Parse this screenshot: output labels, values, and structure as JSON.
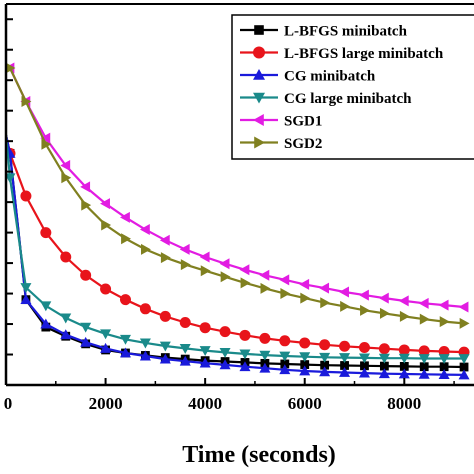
{
  "chart_data": {
    "type": "line",
    "title": "",
    "xlabel": "Time (seconds)",
    "ylabel": "",
    "xlim": [
      0,
      9400
    ],
    "ylim": [
      0,
      12.5
    ],
    "x_ticks": [
      0,
      2000,
      4000,
      6000,
      8000
    ],
    "x_tick_labels": [
      "0",
      "2000",
      "4000",
      "6000",
      "8000"
    ],
    "y_ticks": [
      0,
      1,
      2,
      3,
      4,
      5,
      6,
      7,
      8,
      9,
      10,
      11,
      12,
      13
    ],
    "grid": false,
    "legend_position": "top-right",
    "series": [
      {
        "name": "L-BFGS minibatch",
        "color": "#000000",
        "marker": "square",
        "x": [
          0,
          80,
          400,
          800,
          1200,
          1600,
          2000,
          2400,
          2800,
          3200,
          3600,
          4000,
          4400,
          4800,
          5200,
          5600,
          6000,
          6400,
          6800,
          7200,
          7600,
          8000,
          8400,
          8800,
          9200
        ],
        "y": [
          8.2,
          7.6,
          2.8,
          1.9,
          1.6,
          1.35,
          1.15,
          1.05,
          0.97,
          0.9,
          0.85,
          0.8,
          0.77,
          0.74,
          0.71,
          0.69,
          0.67,
          0.65,
          0.64,
          0.63,
          0.62,
          0.61,
          0.6,
          0.6,
          0.59
        ]
      },
      {
        "name": "L-BFGS large minibatch",
        "color": "#e8141b",
        "marker": "circle",
        "x": [
          0,
          80,
          400,
          800,
          1200,
          1600,
          2000,
          2400,
          2800,
          3200,
          3600,
          4000,
          4400,
          4800,
          5200,
          5600,
          6000,
          6400,
          6800,
          7200,
          7600,
          8000,
          8400,
          8800,
          9200
        ],
        "y": [
          8.2,
          7.6,
          6.2,
          5.0,
          4.2,
          3.6,
          3.15,
          2.8,
          2.5,
          2.25,
          2.05,
          1.88,
          1.75,
          1.63,
          1.53,
          1.45,
          1.38,
          1.32,
          1.27,
          1.23,
          1.19,
          1.15,
          1.12,
          1.1,
          1.08
        ]
      },
      {
        "name": "CG minibatch",
        "color": "#1a1adb",
        "marker": "triangle-up",
        "x": [
          0,
          80,
          400,
          800,
          1200,
          1600,
          2000,
          2400,
          2800,
          3200,
          3600,
          4000,
          4400,
          4800,
          5200,
          5600,
          6000,
          6400,
          6800,
          7200,
          7600,
          8000,
          8400,
          8800,
          9200
        ],
        "y": [
          8.2,
          7.6,
          2.8,
          2.0,
          1.65,
          1.4,
          1.2,
          1.05,
          0.95,
          0.85,
          0.78,
          0.72,
          0.66,
          0.6,
          0.55,
          0.5,
          0.46,
          0.43,
          0.41,
          0.39,
          0.37,
          0.36,
          0.35,
          0.34,
          0.33
        ]
      },
      {
        "name": "CG large minibatch",
        "color": "#1a8a8a",
        "marker": "triangle-down",
        "x": [
          0,
          80,
          400,
          800,
          1200,
          1600,
          2000,
          2400,
          2800,
          3200,
          3600,
          4000,
          4400,
          4800,
          5200,
          5600,
          6000,
          6400,
          6800,
          7200,
          7600,
          8000,
          8400,
          8800,
          9200
        ],
        "y": [
          8.2,
          6.8,
          3.2,
          2.6,
          2.2,
          1.9,
          1.68,
          1.5,
          1.38,
          1.28,
          1.2,
          1.13,
          1.07,
          1.02,
          0.98,
          0.95,
          0.93,
          0.91,
          0.9,
          0.89,
          0.88,
          0.88,
          0.87,
          0.87,
          0.87
        ]
      },
      {
        "name": "SGD1",
        "color": "#e21ce2",
        "marker": "triangle-left",
        "x": [
          0,
          80,
          400,
          800,
          1200,
          1600,
          2000,
          2400,
          2800,
          3200,
          3600,
          4000,
          4400,
          4800,
          5200,
          5600,
          6000,
          6400,
          6800,
          7200,
          7600,
          8000,
          8400,
          8800,
          9200
        ],
        "y": [
          10.5,
          10.4,
          9.3,
          8.1,
          7.2,
          6.5,
          5.95,
          5.5,
          5.1,
          4.75,
          4.45,
          4.2,
          3.98,
          3.78,
          3.6,
          3.45,
          3.3,
          3.18,
          3.05,
          2.95,
          2.85,
          2.76,
          2.68,
          2.62,
          2.56
        ]
      },
      {
        "name": "SGD2",
        "color": "#808020",
        "marker": "triangle-right",
        "x": [
          0,
          80,
          400,
          800,
          1200,
          1600,
          2000,
          2400,
          2800,
          3200,
          3600,
          4000,
          4400,
          4800,
          5200,
          5600,
          6000,
          6400,
          6800,
          7200,
          7600,
          8000,
          8400,
          8800,
          9200
        ],
        "y": [
          10.5,
          10.4,
          9.3,
          7.9,
          6.8,
          5.9,
          5.25,
          4.8,
          4.45,
          4.18,
          3.95,
          3.75,
          3.55,
          3.35,
          3.17,
          3.0,
          2.85,
          2.7,
          2.58,
          2.45,
          2.35,
          2.25,
          2.16,
          2.08,
          2.02
        ]
      }
    ]
  }
}
